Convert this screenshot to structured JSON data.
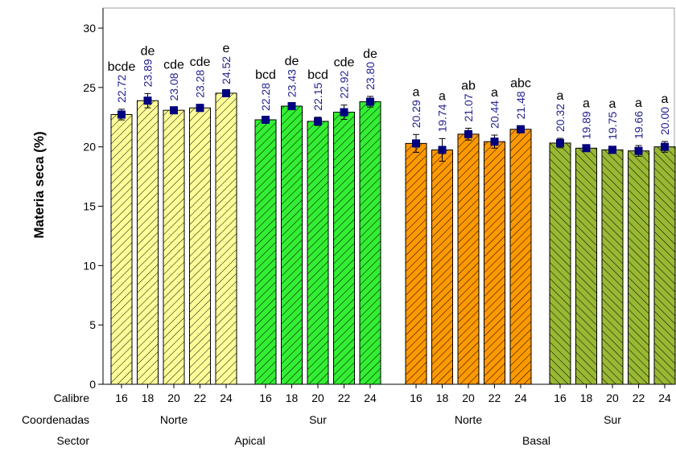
{
  "chart_data": {
    "type": "bar",
    "ylabel": "Materia seca (%)",
    "ylim": [
      0,
      30
    ],
    "yticks": [
      0,
      5,
      10,
      15,
      20,
      25,
      30
    ],
    "grid": false,
    "row_titles": {
      "calibre": "Calibre",
      "coordenadas": "Coordenadas",
      "sector": "Sector"
    },
    "calibres": [
      "16",
      "18",
      "20",
      "22",
      "24"
    ],
    "groups": [
      {
        "sector": "Apical",
        "coordenada": "Norte",
        "color": "#ffff99",
        "values": [
          22.72,
          23.89,
          23.08,
          23.28,
          24.52
        ],
        "value_labels": [
          "22.72",
          "23.89",
          "23.08",
          "23.28",
          "24.52"
        ],
        "errors": [
          0.45,
          0.6,
          0.25,
          0.3,
          0.2
        ],
        "letters": [
          "bcde",
          "de",
          "cde",
          "cde",
          "e"
        ]
      },
      {
        "sector": "Apical",
        "coordenada": "Sur",
        "color": "#33ee33",
        "values": [
          22.28,
          23.43,
          22.15,
          22.92,
          23.8
        ],
        "value_labels": [
          "22.28",
          "23.43",
          "22.15",
          "22.92",
          "23.80"
        ],
        "errors": [
          0.2,
          0.2,
          0.35,
          0.6,
          0.45
        ],
        "letters": [
          "bcd",
          "de",
          "bcd",
          "cde",
          "de"
        ]
      },
      {
        "sector": "Basal",
        "coordenada": "Norte",
        "color": "#ff9900",
        "values": [
          20.29,
          19.74,
          21.07,
          20.44,
          21.48
        ],
        "value_labels": [
          "20.29",
          "19.74",
          "21.07",
          "20.44",
          "21.48"
        ],
        "errors": [
          0.75,
          0.95,
          0.5,
          0.55,
          0.3
        ],
        "letters": [
          "a",
          "a",
          "ab",
          "a",
          "abc"
        ]
      },
      {
        "sector": "Basal",
        "coordenada": "Sur",
        "color": "#99b833",
        "values": [
          20.32,
          19.89,
          19.75,
          19.66,
          20.0
        ],
        "value_labels": [
          "20.32",
          "19.89",
          "19.75",
          "19.66",
          "20.00"
        ],
        "errors": [
          0.4,
          0.2,
          0.3,
          0.45,
          0.45
        ],
        "letters": [
          "a",
          "a",
          "a",
          "a",
          "a"
        ]
      }
    ],
    "sectors": [
      "Apical",
      "Basal"
    ],
    "marker_color": "#00007f"
  }
}
